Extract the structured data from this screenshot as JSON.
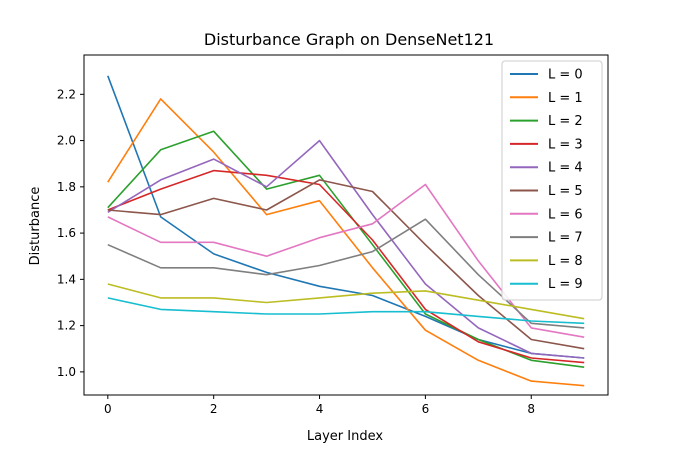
{
  "chart_data": {
    "type": "line",
    "title": "Disturbance Graph on DenseNet121",
    "xlabel": "Layer Index",
    "ylabel": "Disturbance",
    "xlim": [
      -0.45,
      9.45
    ],
    "ylim": [
      0.9,
      2.37
    ],
    "xticks": [
      0,
      2,
      4,
      6,
      8
    ],
    "yticks": [
      1.0,
      1.2,
      1.4,
      1.6,
      1.8,
      2.0,
      2.2
    ],
    "ytick_labels": [
      "1.0",
      "1.2",
      "1.4",
      "1.6",
      "1.8",
      "2.0",
      "2.2"
    ],
    "grid": false,
    "legend_position": "top-right",
    "x": [
      0,
      1,
      2,
      3,
      4,
      5,
      6,
      7,
      8,
      9
    ],
    "series": [
      {
        "name": "L = 0",
        "color": "#1f77b4",
        "values": [
          2.28,
          1.67,
          1.51,
          1.43,
          1.37,
          1.33,
          1.24,
          1.14,
          1.08,
          1.06
        ]
      },
      {
        "name": "L = 1",
        "color": "#ff7f0e",
        "values": [
          1.82,
          2.18,
          1.95,
          1.68,
          1.74,
          1.45,
          1.18,
          1.05,
          0.96,
          0.94
        ]
      },
      {
        "name": "L = 2",
        "color": "#2ca02c",
        "values": [
          1.71,
          1.96,
          2.04,
          1.79,
          1.85,
          1.55,
          1.25,
          1.14,
          1.05,
          1.02
        ]
      },
      {
        "name": "L = 3",
        "color": "#d62728",
        "values": [
          1.7,
          1.79,
          1.87,
          1.85,
          1.81,
          1.57,
          1.27,
          1.13,
          1.06,
          1.04
        ]
      },
      {
        "name": "L = 4",
        "color": "#9467bd",
        "values": [
          1.69,
          1.83,
          1.92,
          1.8,
          2.0,
          1.68,
          1.38,
          1.19,
          1.08,
          1.06
        ]
      },
      {
        "name": "L = 5",
        "color": "#8c564b",
        "values": [
          1.7,
          1.68,
          1.75,
          1.7,
          1.83,
          1.78,
          1.55,
          1.33,
          1.14,
          1.1
        ]
      },
      {
        "name": "L = 6",
        "color": "#e377c2",
        "values": [
          1.67,
          1.56,
          1.56,
          1.5,
          1.58,
          1.64,
          1.81,
          1.48,
          1.19,
          1.15
        ]
      },
      {
        "name": "L = 7",
        "color": "#7f7f7f",
        "values": [
          1.55,
          1.45,
          1.45,
          1.42,
          1.46,
          1.52,
          1.66,
          1.42,
          1.21,
          1.19
        ]
      },
      {
        "name": "L = 8",
        "color": "#bcbd22",
        "values": [
          1.38,
          1.32,
          1.32,
          1.3,
          1.32,
          1.34,
          1.35,
          1.31,
          1.27,
          1.23
        ]
      },
      {
        "name": "L = 9",
        "color": "#17becf",
        "values": [
          1.32,
          1.27,
          1.26,
          1.25,
          1.25,
          1.26,
          1.26,
          1.24,
          1.22,
          1.21
        ]
      }
    ]
  }
}
